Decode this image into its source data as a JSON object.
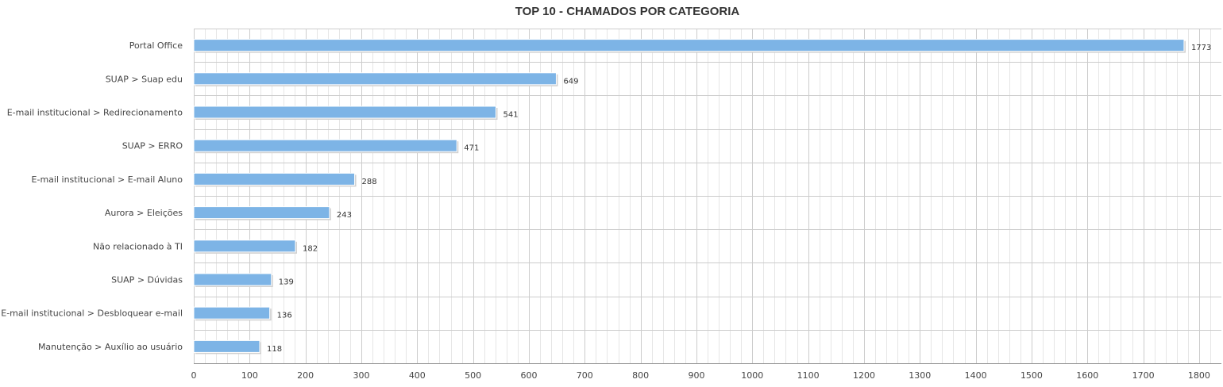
{
  "chart_data": {
    "type": "bar",
    "orientation": "horizontal",
    "title": "TOP 10 - CHAMADOS POR CATEGORIA",
    "categories": [
      "Portal Office",
      "SUAP > Suap edu",
      "E-mail institucional > Redirecionamento",
      "SUAP > ERRO",
      "E-mail institucional > E-mail Aluno",
      "Aurora > Eleições",
      "Não relacionado à TI",
      "SUAP > Dúvidas",
      "E-mail institucional > Desbloquear e-mail",
      "Manutenção > Auxílio ao usuário"
    ],
    "values": [
      1773,
      649,
      541,
      471,
      288,
      243,
      182,
      139,
      136,
      118
    ],
    "value_labels": [
      "1773",
      "649",
      "541",
      "471",
      "288",
      "243",
      "182",
      "139",
      "136",
      "118"
    ],
    "xlim": [
      0,
      1820
    ],
    "xticks": [
      0,
      100,
      200,
      300,
      400,
      500,
      600,
      700,
      800,
      900,
      1000,
      1100,
      1200,
      1300,
      1400,
      1500,
      1600,
      1700,
      1800
    ],
    "xtick_labels": [
      "0",
      "100",
      "200",
      "300",
      "400",
      "500",
      "600",
      "700",
      "800",
      "900",
      "1000",
      "1100",
      "1200",
      "1300",
      "1400",
      "1500",
      "1600",
      "1700",
      "1800"
    ],
    "grid": true,
    "legend": "none",
    "colors": {
      "bar": "#7db4e6",
      "bar_shadow": "#d0d0d0",
      "grid_major": "#cccccc",
      "grid_minor": "#e6e6e6",
      "axis": "#999999"
    }
  }
}
